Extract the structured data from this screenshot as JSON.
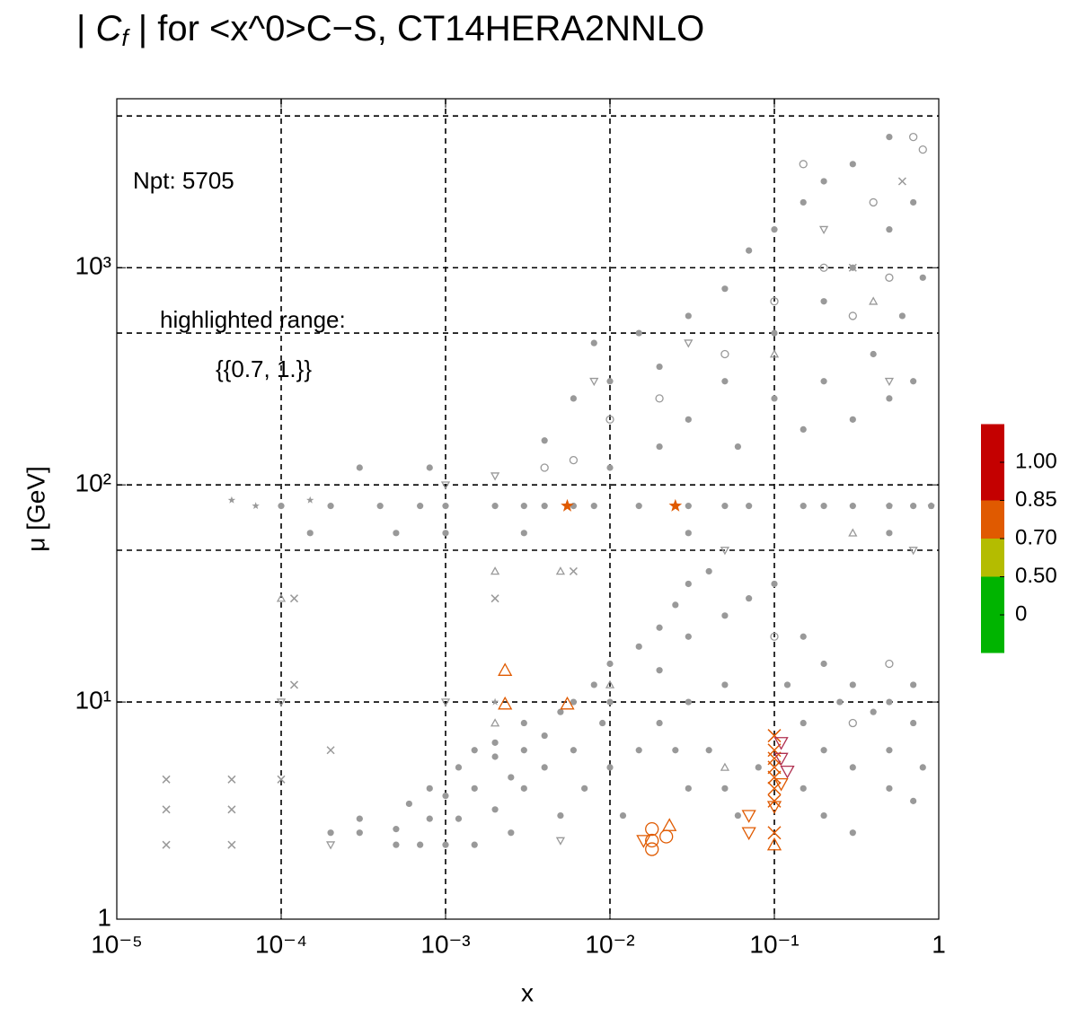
{
  "chart_data": {
    "type": "scatter",
    "title_prefix": "| ",
    "title_symbol": "C",
    "title_sub": "f",
    "title_suffix": " | for  <x^0>C−S, CT14HERA2NNLO",
    "x_label": "x",
    "y_label": "μ [GeV]",
    "annotations": [
      "Npt: 5705",
      "highlighted range:",
      "{{0.7, 1.}}"
    ],
    "x_log": true,
    "y_log": true,
    "xlim": [
      1e-05,
      1
    ],
    "ylim": [
      1,
      6000
    ],
    "xticks": [
      {
        "value": 1e-05,
        "label": "10⁻⁵"
      },
      {
        "value": 0.0001,
        "label": "10⁻⁴"
      },
      {
        "value": 0.001,
        "label": "10⁻³"
      },
      {
        "value": 0.01,
        "label": "10⁻²"
      },
      {
        "value": 0.1,
        "label": "10⁻¹"
      },
      1
    ],
    "yticks": [
      1,
      {
        "value": 10,
        "label": "10¹"
      },
      {
        "value": 100,
        "label": "10²"
      },
      {
        "value": 1000,
        "label": "10³"
      }
    ],
    "xgrid": [
      0.0001,
      0.001,
      0.01,
      0.1
    ],
    "ygrid": [
      10,
      50,
      100,
      500,
      1000,
      5000
    ],
    "colorbar": {
      "ticks": [
        {
          "value": 0,
          "label": "0"
        },
        {
          "value": 0.5,
          "label": "0.50"
        },
        {
          "value": 0.7,
          "label": "0.70"
        },
        {
          "value": 0.85,
          "label": "0.85"
        },
        {
          "value": 1,
          "label": "1.00"
        }
      ],
      "colors": [
        "#00b400",
        "#b4bc00",
        "#e05a00",
        "#c40000"
      ]
    },
    "series": [
      {
        "marker": "dot",
        "color": "#999999",
        "x": [
          0.0005,
          0.0007,
          0.001,
          0.0015,
          0.0002,
          0.0003,
          0.0005,
          0.0008,
          0.0012,
          0.002,
          0.0003,
          0.0006,
          0.001,
          0.0015,
          0.0025,
          0.0008,
          0.0012,
          0.002,
          0.003,
          0.004,
          0.002,
          0.003,
          0.005,
          0.006,
          0.008,
          0.01,
          0.015,
          0.02,
          0.025,
          0.03,
          0.04,
          0.01,
          0.015,
          0.02,
          0.03,
          0.05,
          0.01,
          0.02,
          0.03,
          0.05,
          0.07,
          0.1,
          0.15,
          0.2,
          0.3,
          0.5,
          0.7,
          0.15,
          0.2,
          0.3,
          0.5,
          0.7,
          0.15,
          0.2,
          0.3,
          0.5,
          0.7,
          0.8,
          0.4,
          0.25,
          0.12,
          0.04,
          0.05,
          0.06,
          0.08,
          0.03,
          0.025,
          0.005,
          0.007,
          0.006,
          0.004,
          0.003,
          0.009,
          0.012,
          0.0015,
          0.0025,
          0.0001,
          0.0002,
          0.0004,
          0.0007,
          0.001,
          0.002,
          0.003,
          0.004,
          0.006,
          0.008,
          0.015,
          0.03,
          0.05,
          0.07,
          0.15,
          0.2,
          0.3,
          0.5,
          0.7,
          0.9,
          0.008,
          0.01,
          0.015,
          0.02,
          0.03,
          0.05,
          0.07,
          0.1,
          0.15,
          0.2,
          0.3,
          0.5,
          0.1,
          0.2,
          0.3,
          0.5,
          0.7,
          0.05,
          0.1,
          0.2,
          0.4,
          0.6,
          0.8,
          0.03,
          0.06,
          0.15,
          0.3,
          0.5,
          0.7,
          0.004,
          0.006,
          0.02,
          0.01,
          0.0003,
          0.0008,
          0.00015,
          0.0005,
          0.001,
          0.003,
          0.03,
          0.5
        ],
        "y": [
          2.2,
          2.2,
          2.2,
          2.2,
          2.5,
          2.5,
          2.6,
          2.9,
          2.9,
          3.2,
          2.9,
          3.4,
          3.7,
          4,
          4.5,
          4,
          5,
          5.6,
          6,
          7,
          6.5,
          8,
          9,
          10,
          12,
          15,
          18,
          22,
          28,
          35,
          40,
          5,
          6,
          8,
          10,
          12,
          10,
          14,
          20,
          25,
          30,
          35,
          20,
          15,
          12,
          10,
          8,
          8,
          6,
          5,
          4,
          3.5,
          4,
          3,
          2.5,
          6,
          12,
          5,
          9,
          10,
          12,
          6,
          4,
          3,
          5,
          4,
          6,
          3,
          4,
          6,
          5,
          4,
          8,
          3,
          6,
          2.5,
          80,
          80,
          80,
          80,
          80,
          80,
          80,
          80,
          80,
          80,
          80,
          80,
          80,
          80,
          80,
          80,
          80,
          80,
          80,
          80,
          450,
          300,
          500,
          350,
          600,
          800,
          1200,
          1500,
          2000,
          2500,
          3000,
          4000,
          500,
          700,
          1000,
          1500,
          2000,
          300,
          250,
          300,
          400,
          600,
          900,
          200,
          150,
          180,
          200,
          250,
          300,
          160,
          250,
          150,
          120,
          120,
          120,
          60,
          60,
          60,
          60,
          60,
          60
        ]
      },
      {
        "marker": "circle",
        "color": "#999999",
        "x": [
          0.01,
          0.02,
          0.05,
          0.1,
          0.2,
          0.4,
          0.7,
          0.8,
          0.006,
          0.004,
          0.3,
          0.5,
          0.15,
          0.1,
          0.3,
          0.5
        ],
        "y": [
          200,
          250,
          400,
          700,
          1000,
          2000,
          4000,
          3500,
          130,
          120,
          600,
          900,
          3000,
          20,
          8,
          15
        ]
      },
      {
        "marker": "tri-down",
        "color": "#999999",
        "x": [
          0.001,
          0.002,
          0.008,
          0.03,
          0.2,
          0.5,
          0.0001,
          0.0002,
          0.001,
          0.005,
          0.05,
          0.7
        ],
        "y": [
          100,
          110,
          300,
          450,
          1500,
          300,
          10,
          2.2,
          10,
          2.3,
          50,
          50
        ]
      },
      {
        "marker": "tri-up",
        "color": "#999999",
        "x": [
          0.002,
          0.005,
          0.0001,
          0.3,
          0.1,
          0.4,
          0.05,
          0.002,
          0.01
        ],
        "y": [
          40,
          40,
          30,
          60,
          400,
          700,
          5,
          8,
          12
        ]
      },
      {
        "marker": "cross",
        "color": "#999999",
        "x": [
          2e-05,
          2e-05,
          2e-05,
          5e-05,
          5e-05,
          5e-05,
          0.0001,
          0.0002,
          0.00012,
          0.00012,
          0.002,
          0.006,
          0.3,
          0.6
        ],
        "y": [
          4.4,
          3.2,
          2.2,
          4.4,
          3.2,
          2.2,
          4.4,
          6,
          30,
          12,
          30,
          40,
          1000,
          2500
        ]
      },
      {
        "marker": "star",
        "color": "#999999",
        "x": [
          5e-05,
          7e-05,
          0.00015,
          0.002,
          0.5,
          0.9
        ],
        "y": [
          85,
          80,
          85,
          10,
          80,
          80
        ]
      },
      {
        "marker": "star",
        "color": "#e05a00",
        "x": [
          0.0055,
          0.025
        ],
        "y": [
          80,
          80
        ]
      },
      {
        "marker": "tri-up",
        "color": "#e05a00",
        "x": [
          0.0023,
          0.0023,
          0.0055,
          0.023,
          0.1
        ],
        "y": [
          14,
          9.8,
          9.8,
          2.7,
          2.2
        ]
      },
      {
        "marker": "circle",
        "color": "#e05a00",
        "x": [
          0.018,
          0.018,
          0.018,
          0.022
        ],
        "y": [
          2.6,
          2.3,
          2.1,
          2.4
        ]
      },
      {
        "marker": "tri-down",
        "color": "#e05a00",
        "x": [
          0.016,
          0.07,
          0.07,
          0.1,
          0.11
        ],
        "y": [
          2.3,
          2.5,
          3,
          3.3,
          4.2
        ]
      },
      {
        "marker": "cross",
        "color": "#e05a00",
        "x": [
          0.1,
          0.1,
          0.1,
          0.1,
          0.1,
          0.1,
          0.1,
          0.1
        ],
        "y": [
          7,
          6,
          5.5,
          4.5,
          3.5,
          2.5,
          4,
          5
        ]
      },
      {
        "marker": "tri-down",
        "color": "#b03050",
        "x": [
          0.11,
          0.11,
          0.12
        ],
        "y": [
          5.5,
          6.5,
          4.8
        ]
      }
    ]
  }
}
